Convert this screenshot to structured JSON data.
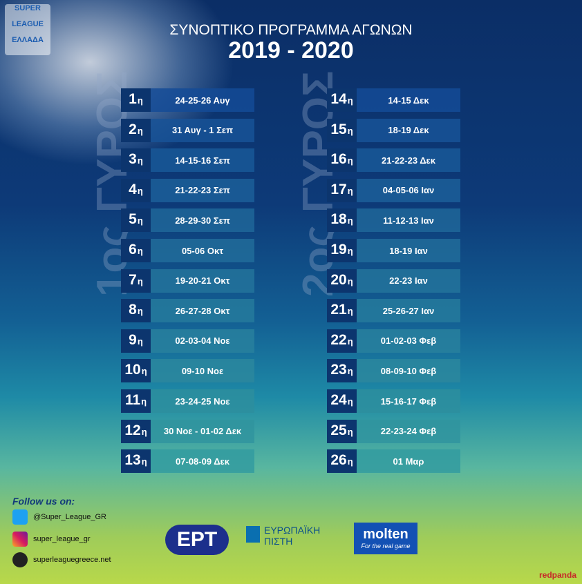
{
  "logo": {
    "line1": "SUPER",
    "line2": "LEAGUE",
    "line3": "ΕΛΛΑΔΑ"
  },
  "header": {
    "title": "ΣΥΝΟΠΤΙΚΟ ΠΡΟΓΡΑΜΜΑ ΑΓΩΝΩΝ",
    "season": "2019 - 2020"
  },
  "rounds": [
    {
      "label": "1ος ΓΥΡΟΣ",
      "matchdays": [
        {
          "num": "1",
          "suffix": "η",
          "dates": "24-25-26 Αυγ"
        },
        {
          "num": "2",
          "suffix": "η",
          "dates": "31 Αυγ - 1 Σεπ"
        },
        {
          "num": "3",
          "suffix": "η",
          "dates": "14-15-16 Σεπ"
        },
        {
          "num": "4",
          "suffix": "η",
          "dates": "21-22-23 Σεπ"
        },
        {
          "num": "5",
          "suffix": "η",
          "dates": "28-29-30 Σεπ"
        },
        {
          "num": "6",
          "suffix": "η",
          "dates": "05-06 Οκτ"
        },
        {
          "num": "7",
          "suffix": "η",
          "dates": "19-20-21 Οκτ"
        },
        {
          "num": "8",
          "suffix": "η",
          "dates": "26-27-28 Οκτ"
        },
        {
          "num": "9",
          "suffix": "η",
          "dates": "02-03-04 Νοε"
        },
        {
          "num": "10",
          "suffix": "η",
          "dates": "09-10 Νοε"
        },
        {
          "num": "11",
          "suffix": "η",
          "dates": "23-24-25 Νοε"
        },
        {
          "num": "12",
          "suffix": "η",
          "dates": "30 Νοε - 01-02 Δεκ"
        },
        {
          "num": "13",
          "suffix": "η",
          "dates": "07-08-09 Δεκ"
        }
      ]
    },
    {
      "label": "2ος ΓΥΡΟΣ",
      "matchdays": [
        {
          "num": "14",
          "suffix": "η",
          "dates": "14-15 Δεκ"
        },
        {
          "num": "15",
          "suffix": "η",
          "dates": "18-19 Δεκ"
        },
        {
          "num": "16",
          "suffix": "η",
          "dates": "21-22-23 Δεκ"
        },
        {
          "num": "17",
          "suffix": "η",
          "dates": "04-05-06 Ιαν"
        },
        {
          "num": "18",
          "suffix": "η",
          "dates": "11-12-13 Ιαν"
        },
        {
          "num": "19",
          "suffix": "η",
          "dates": "18-19 Ιαν"
        },
        {
          "num": "20",
          "suffix": "η",
          "dates": "22-23 Ιαν"
        },
        {
          "num": "21",
          "suffix": "η",
          "dates": "25-26-27 Ιαν"
        },
        {
          "num": "22",
          "suffix": "η",
          "dates": "01-02-03 Φεβ"
        },
        {
          "num": "23",
          "suffix": "η",
          "dates": "08-09-10 Φεβ"
        },
        {
          "num": "24",
          "suffix": "η",
          "dates": "15-16-17 Φεβ"
        },
        {
          "num": "25",
          "suffix": "η",
          "dates": "22-23-24 Φεβ"
        },
        {
          "num": "26",
          "suffix": "η",
          "dates": "01 Μαρ"
        }
      ]
    }
  ],
  "social": {
    "heading": "Follow us on:",
    "twitter": "@Super_League_GR",
    "instagram": "super_league_gr",
    "web": "superleaguegreece.net"
  },
  "sponsors": {
    "ert": "ΕΡΤ",
    "pisti_line1": "ΕΥΡΩΠΑΪΚΗ",
    "pisti_line2": "ΠΙΣΤΗ",
    "molten": "molten",
    "molten_tag": "For the real game",
    "agency": "redpanda"
  }
}
